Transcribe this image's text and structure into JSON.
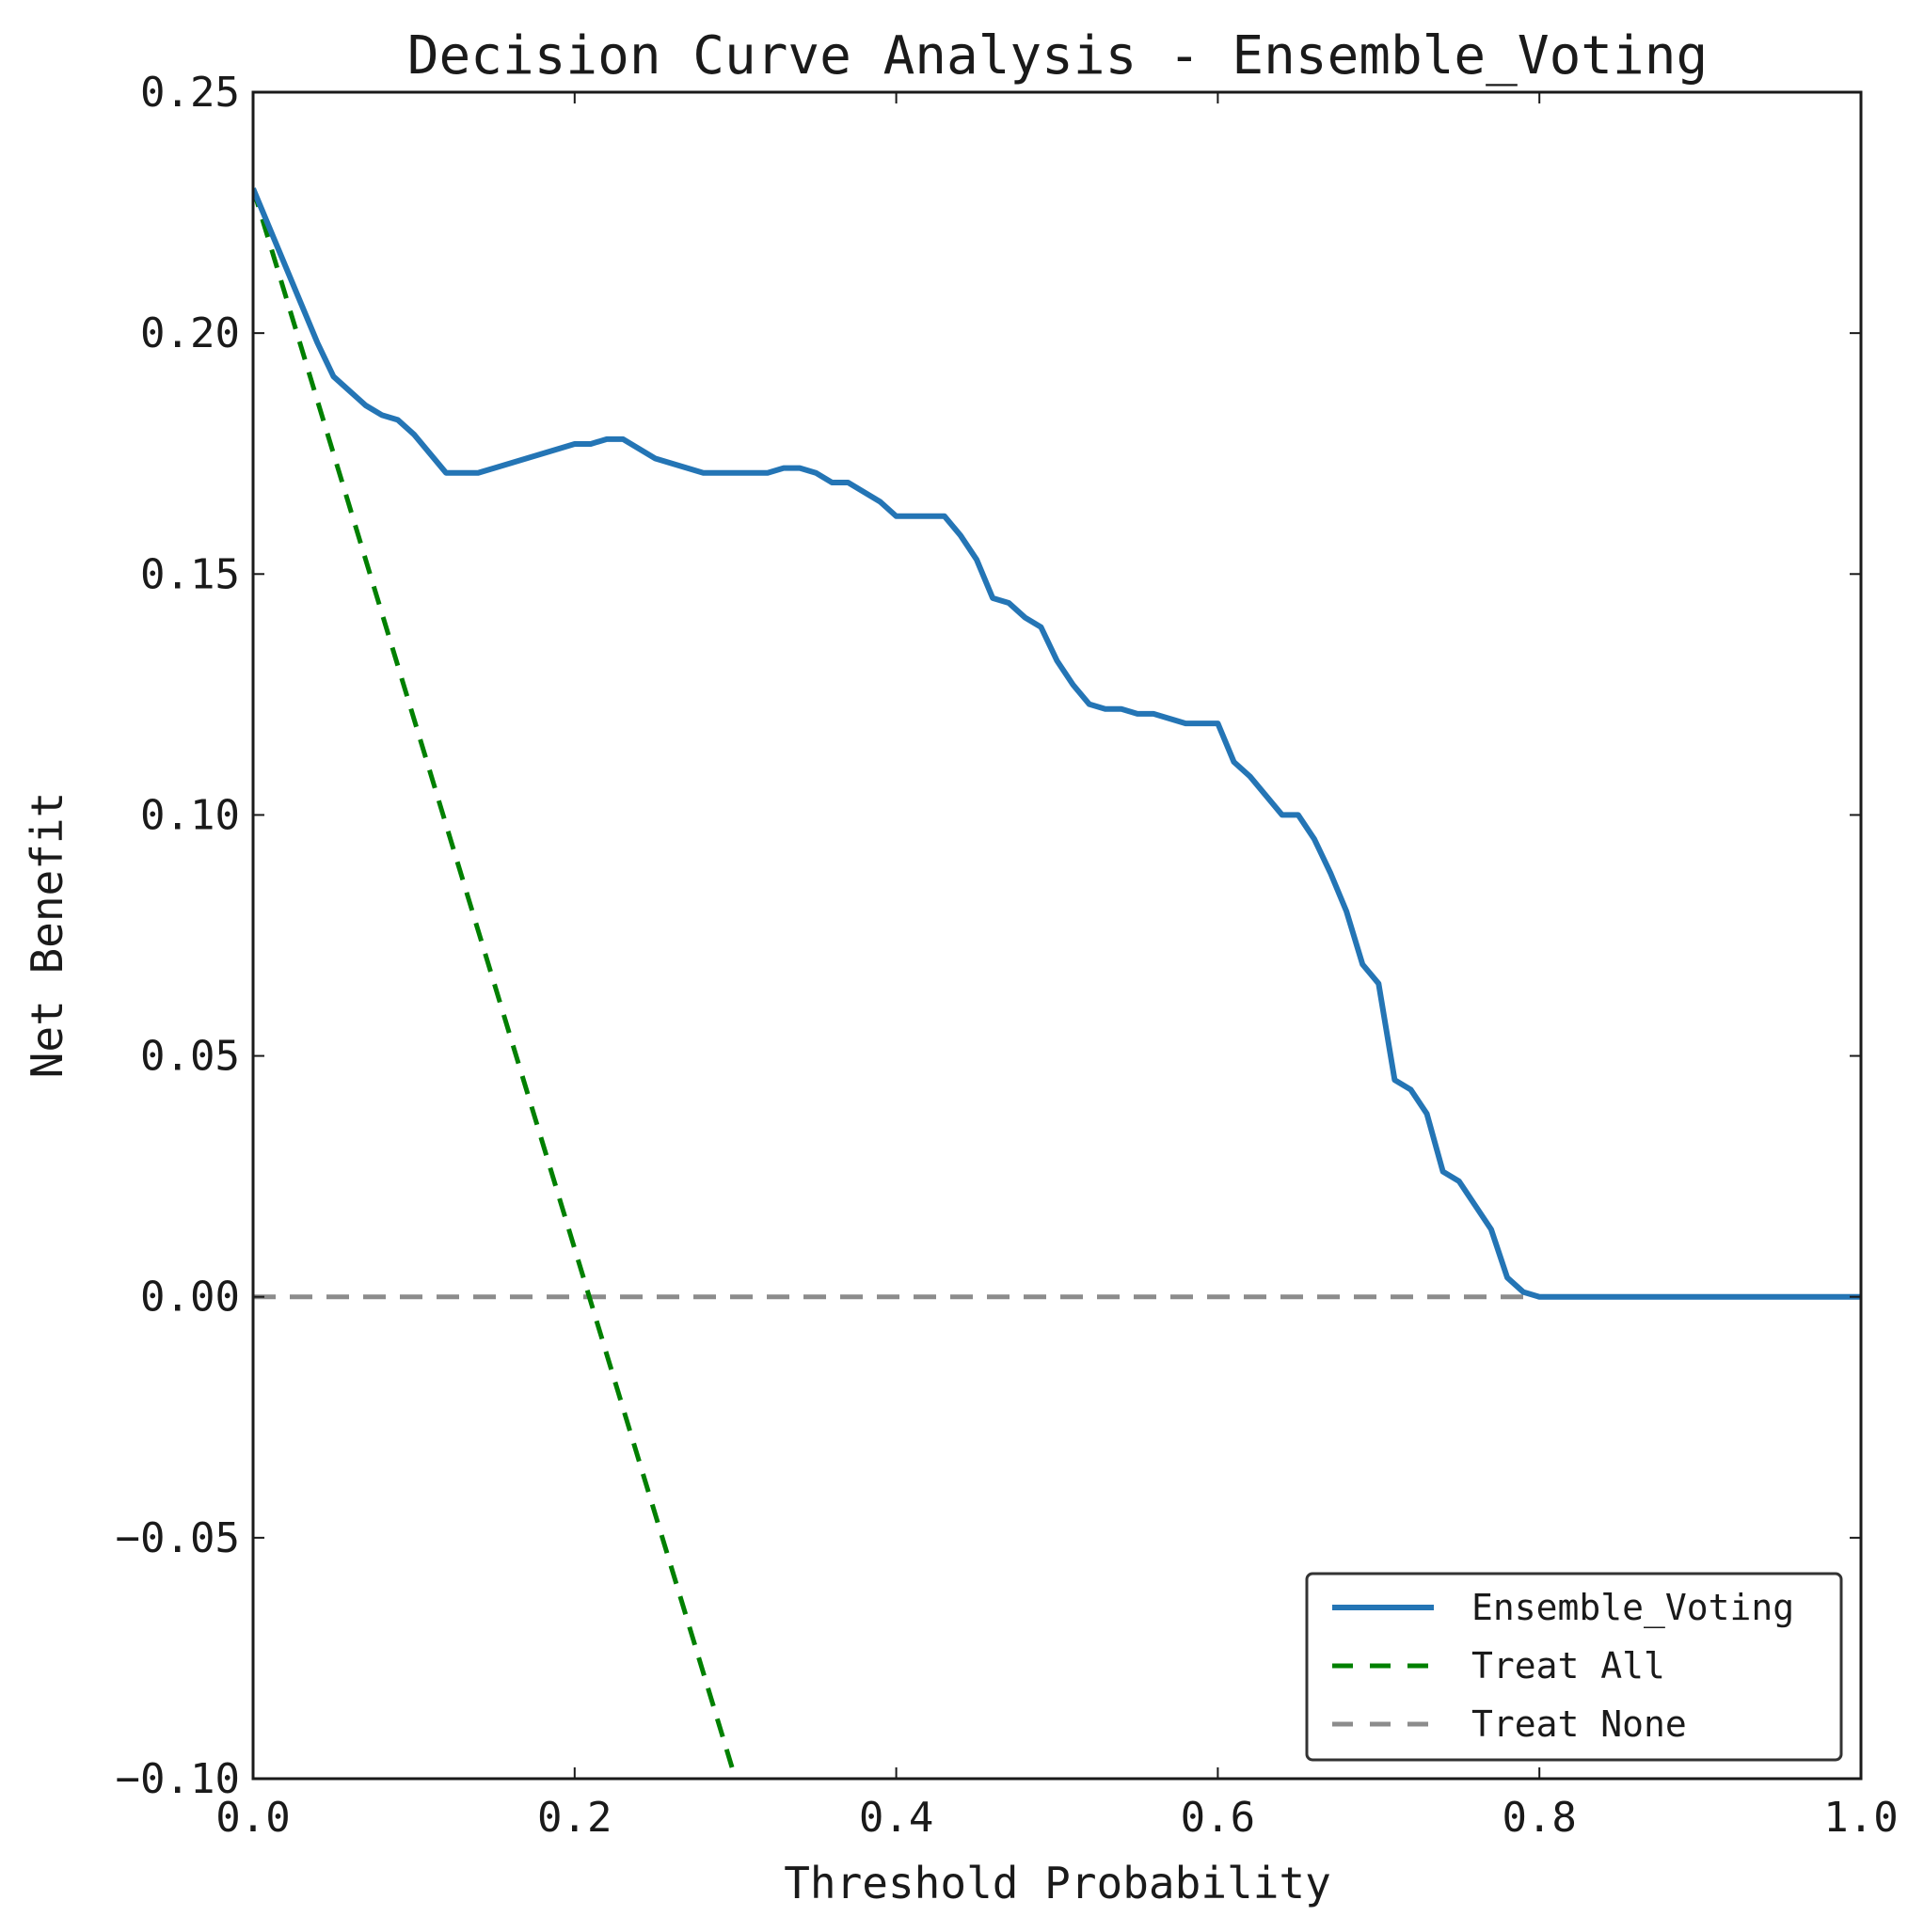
{
  "chart_data": {
    "type": "line",
    "title": "Decision Curve Analysis - Ensemble_Voting",
    "xlabel": "Threshold Probability",
    "ylabel": "Net Benefit",
    "xlim": [
      0.0,
      1.0
    ],
    "ylim": [
      -0.1,
      0.25
    ],
    "x_ticks": [
      "0.0",
      "0.2",
      "0.4",
      "0.6",
      "0.8",
      "1.0"
    ],
    "y_ticks": [
      "−0.10",
      "−0.05",
      "0.00",
      "0.05",
      "0.10",
      "0.15",
      "0.20",
      "0.25"
    ],
    "grid": false,
    "legend_position": "bottom-right",
    "series": [
      {
        "name": "Ensemble_Voting",
        "color": "#2475b5",
        "style": "solid",
        "x": [
          0.0,
          0.01,
          0.02,
          0.03,
          0.04,
          0.05,
          0.06,
          0.07,
          0.08,
          0.09,
          0.1,
          0.11,
          0.12,
          0.13,
          0.14,
          0.15,
          0.16,
          0.17,
          0.18,
          0.19,
          0.2,
          0.21,
          0.22,
          0.23,
          0.24,
          0.25,
          0.26,
          0.27,
          0.28,
          0.29,
          0.3,
          0.31,
          0.32,
          0.33,
          0.34,
          0.35,
          0.36,
          0.37,
          0.38,
          0.39,
          0.4,
          0.41,
          0.42,
          0.43,
          0.44,
          0.45,
          0.46,
          0.47,
          0.48,
          0.49,
          0.5,
          0.51,
          0.52,
          0.53,
          0.54,
          0.55,
          0.56,
          0.57,
          0.58,
          0.59,
          0.6,
          0.61,
          0.62,
          0.63,
          0.64,
          0.65,
          0.66,
          0.67,
          0.68,
          0.69,
          0.7,
          0.71,
          0.72,
          0.73,
          0.74,
          0.75,
          0.76,
          0.77,
          0.78,
          0.79,
          0.8,
          0.81,
          1.0
        ],
        "y": [
          0.23,
          0.222,
          0.214,
          0.206,
          0.198,
          0.191,
          0.188,
          0.185,
          0.183,
          0.182,
          0.179,
          0.175,
          0.171,
          0.171,
          0.171,
          0.172,
          0.173,
          0.174,
          0.175,
          0.176,
          0.177,
          0.177,
          0.178,
          0.178,
          0.176,
          0.174,
          0.173,
          0.172,
          0.171,
          0.171,
          0.171,
          0.171,
          0.171,
          0.172,
          0.172,
          0.171,
          0.169,
          0.169,
          0.167,
          0.165,
          0.162,
          0.162,
          0.162,
          0.162,
          0.158,
          0.153,
          0.145,
          0.144,
          0.141,
          0.139,
          0.132,
          0.127,
          0.123,
          0.122,
          0.122,
          0.121,
          0.121,
          0.12,
          0.119,
          0.119,
          0.119,
          0.111,
          0.108,
          0.104,
          0.1,
          0.1,
          0.095,
          0.088,
          0.08,
          0.069,
          0.065,
          0.045,
          0.043,
          0.038,
          0.026,
          0.024,
          0.019,
          0.014,
          0.004,
          0.001,
          0.0,
          0.0,
          0.0
        ]
      },
      {
        "name": "Treat All",
        "color": "#008000",
        "style": "dashed",
        "x": [
          0.0,
          0.3
        ],
        "y": [
          0.23,
          -0.1
        ]
      },
      {
        "name": "Treat None",
        "color": "#8c8c8c",
        "style": "dashed",
        "x": [
          0.0,
          1.0
        ],
        "y": [
          0.0,
          0.0
        ]
      }
    ]
  }
}
